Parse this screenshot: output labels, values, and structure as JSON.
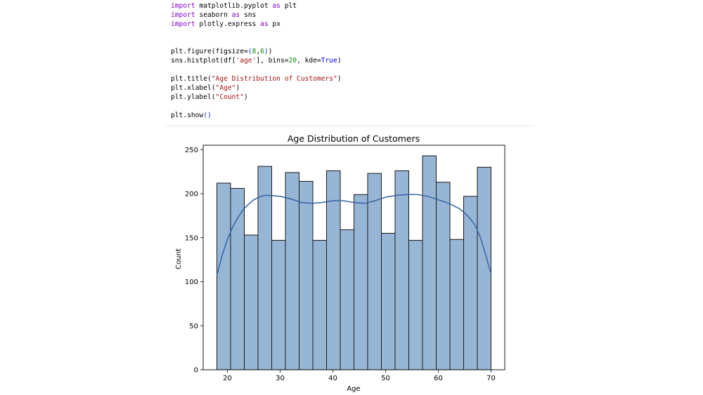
{
  "code_cell": {
    "lines": [
      [
        {
          "t": "import",
          "c": "kw"
        },
        {
          "t": " matplotlib.pyplot "
        },
        {
          "t": "as",
          "c": "kw"
        },
        {
          "t": " plt"
        }
      ],
      [
        {
          "t": "import",
          "c": "kw"
        },
        {
          "t": " seaborn "
        },
        {
          "t": "as",
          "c": "kw"
        },
        {
          "t": " sns"
        }
      ],
      [
        {
          "t": "import",
          "c": "kw"
        },
        {
          "t": " plotly.express "
        },
        {
          "t": "as",
          "c": "kw"
        },
        {
          "t": " px"
        }
      ],
      [],
      [],
      [
        {
          "t": "plt.figure(figsize="
        },
        {
          "t": "(",
          "c": "par"
        },
        {
          "t": "8",
          "c": "num"
        },
        {
          "t": ","
        },
        {
          "t": "6",
          "c": "num"
        },
        {
          "t": ")",
          "c": "par"
        },
        {
          "t": ")"
        }
      ],
      [
        {
          "t": "sns.histplot(df["
        },
        {
          "t": "'age'",
          "c": "str"
        },
        {
          "t": "], bins="
        },
        {
          "t": "20",
          "c": "num"
        },
        {
          "t": ", kde="
        },
        {
          "t": "True",
          "c": "kwv"
        },
        {
          "t": ")"
        }
      ],
      [],
      [
        {
          "t": "plt.title("
        },
        {
          "t": "\"Age Distribution of Customers\"",
          "c": "str"
        },
        {
          "t": ")"
        }
      ],
      [
        {
          "t": "plt.xlabel("
        },
        {
          "t": "\"Age\"",
          "c": "str"
        },
        {
          "t": ")"
        }
      ],
      [
        {
          "t": "plt.ylabel("
        },
        {
          "t": "\"Count\"",
          "c": "str"
        },
        {
          "t": ")"
        }
      ],
      [],
      [
        {
          "t": "plt.show"
        },
        {
          "t": "()",
          "c": "par"
        }
      ]
    ]
  },
  "chart_data": {
    "type": "bar",
    "title": "Age Distribution of Customers",
    "xlabel": "Age",
    "ylabel": "Count",
    "xlim": [
      15.4,
      72.6
    ],
    "ylim": [
      0,
      255
    ],
    "xticks": [
      20,
      30,
      40,
      50,
      60,
      70
    ],
    "yticks": [
      0,
      50,
      100,
      150,
      200,
      250
    ],
    "bins": {
      "start": 18,
      "width": 2.6,
      "counts": [
        212,
        206,
        153,
        231,
        147,
        224,
        214,
        147,
        226,
        159,
        199,
        223,
        155,
        226,
        147,
        243,
        213,
        148,
        197,
        230
      ]
    },
    "kde": {
      "x": [
        18,
        19,
        20,
        21,
        22,
        23,
        24,
        25,
        26,
        27,
        28,
        30,
        32,
        34,
        36,
        38,
        40,
        42,
        44,
        46,
        48,
        50,
        52,
        54,
        56,
        58,
        60,
        62,
        64,
        65,
        66,
        67,
        68,
        69,
        70
      ],
      "y": [
        107,
        130,
        148,
        162,
        173,
        182,
        188,
        193,
        196,
        198,
        198,
        197,
        194,
        190,
        189,
        190,
        192,
        192,
        190,
        189,
        192,
        196,
        198,
        199,
        199,
        197,
        193,
        189,
        183,
        178,
        172,
        164,
        150,
        130,
        109
      ]
    },
    "grid": false,
    "bar_color": "#97b5d5",
    "edge_color": "#1a1a1a",
    "kde_color": "#3465a4"
  }
}
